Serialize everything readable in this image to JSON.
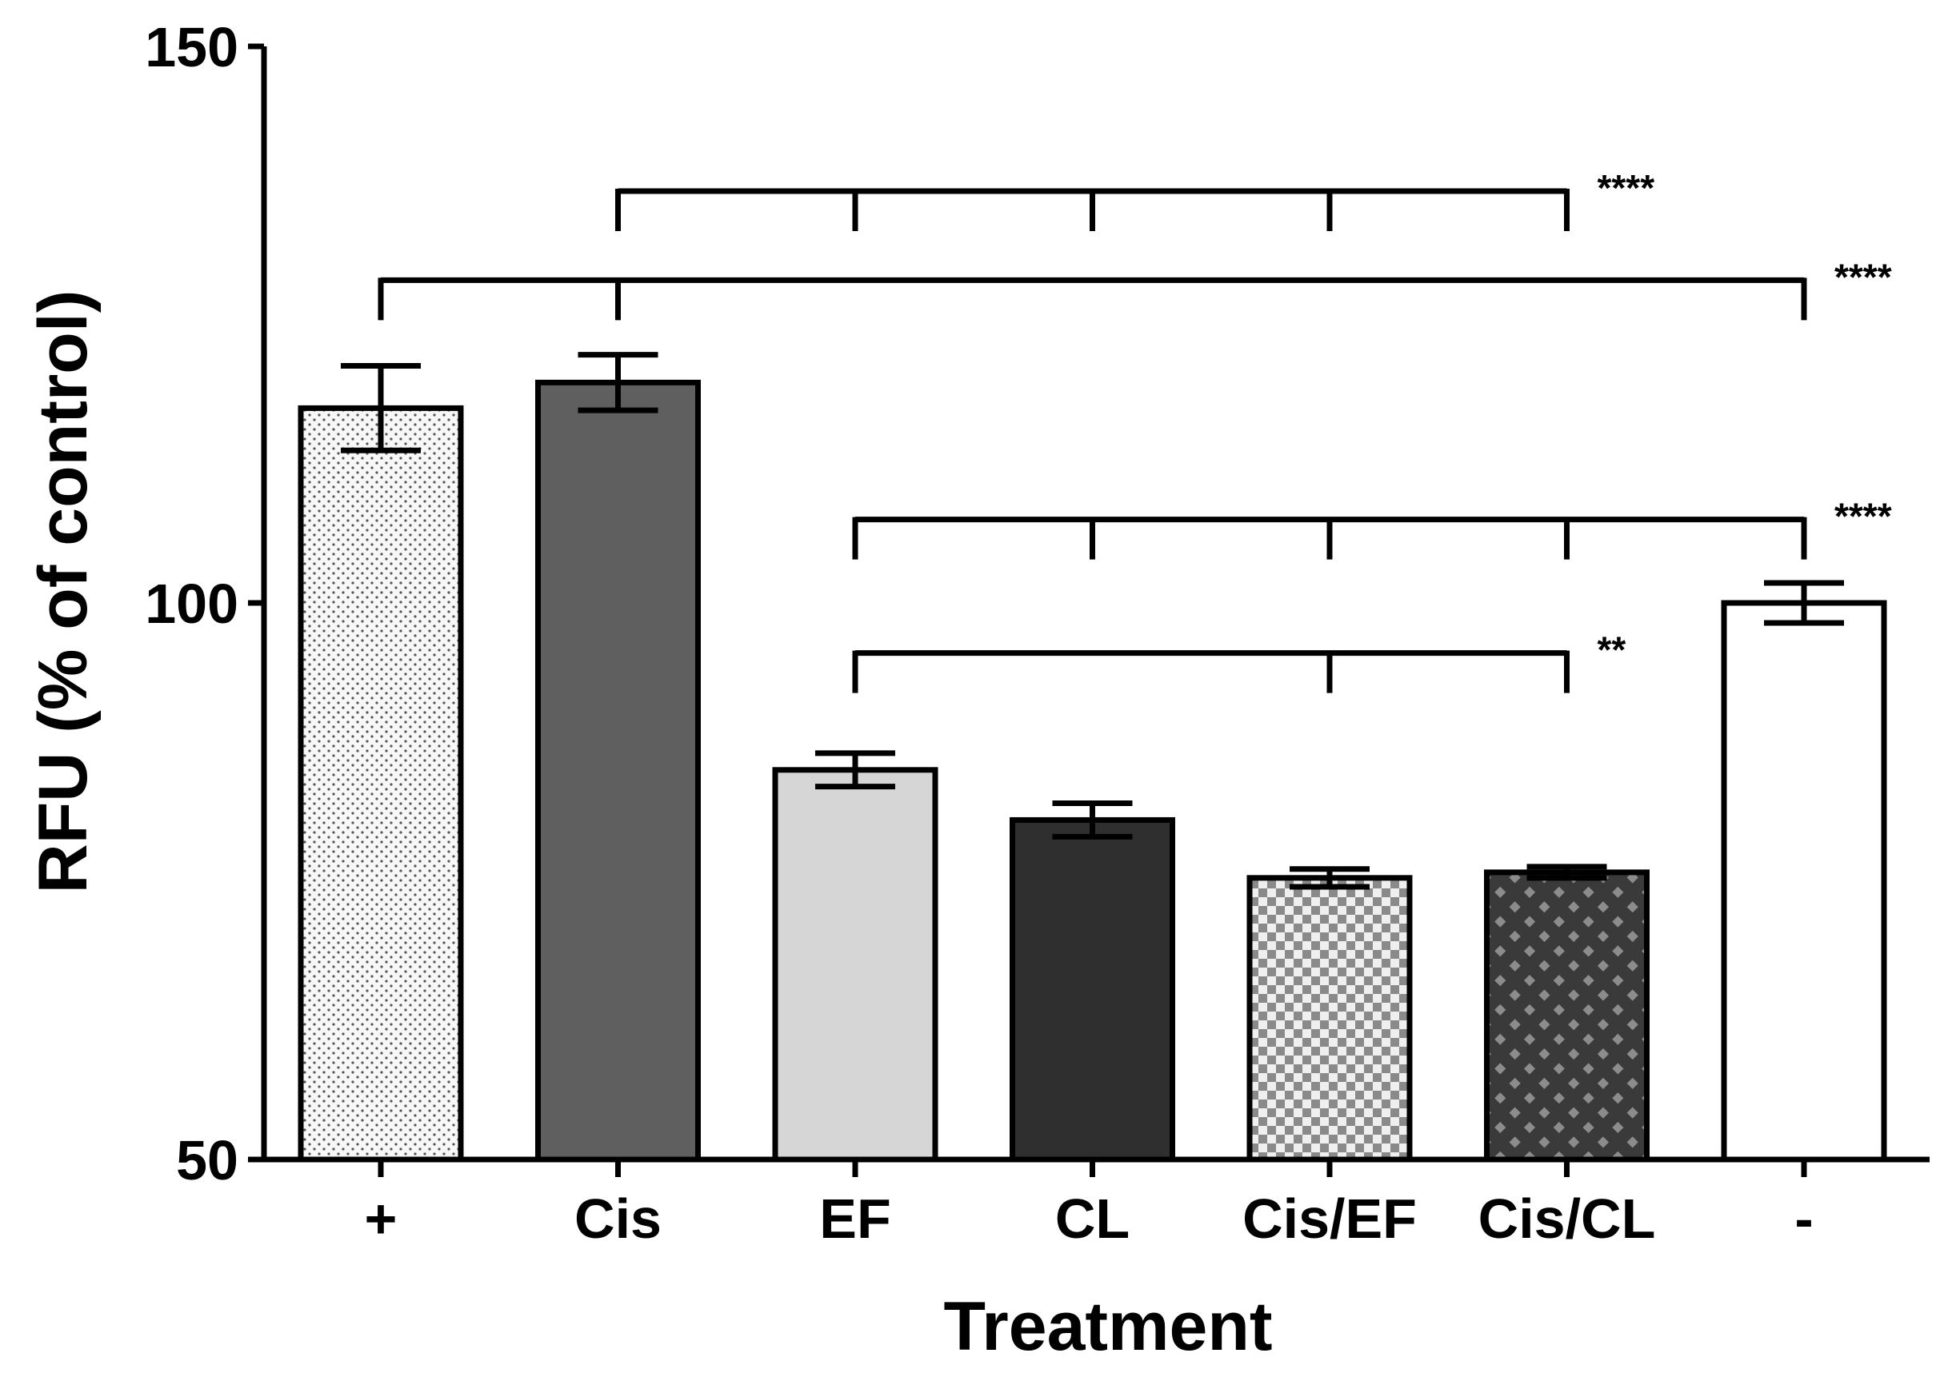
{
  "chart_data": {
    "type": "bar",
    "title": "",
    "xlabel": "Treatment",
    "ylabel": "RFU (% of control)",
    "ylim": [
      50,
      150
    ],
    "yticks": [
      50,
      100,
      150
    ],
    "categories": [
      "+",
      "Cis",
      "EF",
      "CL",
      "Cis/EF",
      "Cis/CL",
      "-"
    ],
    "values": [
      117.5,
      119.8,
      85.0,
      80.5,
      75.3,
      75.8,
      100.0
    ],
    "errors": [
      3.8,
      2.5,
      1.5,
      1.5,
      0.8,
      0.5,
      1.8
    ],
    "fills": [
      "dots",
      "#5f5f5f",
      "#d6d6d6",
      "#2f2f2f",
      "checker-light",
      "diamond-dark",
      "#ffffff"
    ],
    "significance": [
      {
        "from": 1,
        "to": 5,
        "ticks": [
          1,
          2,
          3,
          4,
          5
        ],
        "y": 137,
        "label": "****"
      },
      {
        "from": 0,
        "to": 6,
        "ticks": [
          0,
          1,
          6
        ],
        "y": 129,
        "label": "****"
      },
      {
        "from": 2,
        "to": 6,
        "ticks": [
          2,
          3,
          4,
          5,
          6
        ],
        "y": 107.5,
        "label": "****"
      },
      {
        "from": 2,
        "to": 5,
        "ticks": [
          2,
          4,
          5
        ],
        "y": 95.5,
        "label": "**"
      }
    ]
  }
}
